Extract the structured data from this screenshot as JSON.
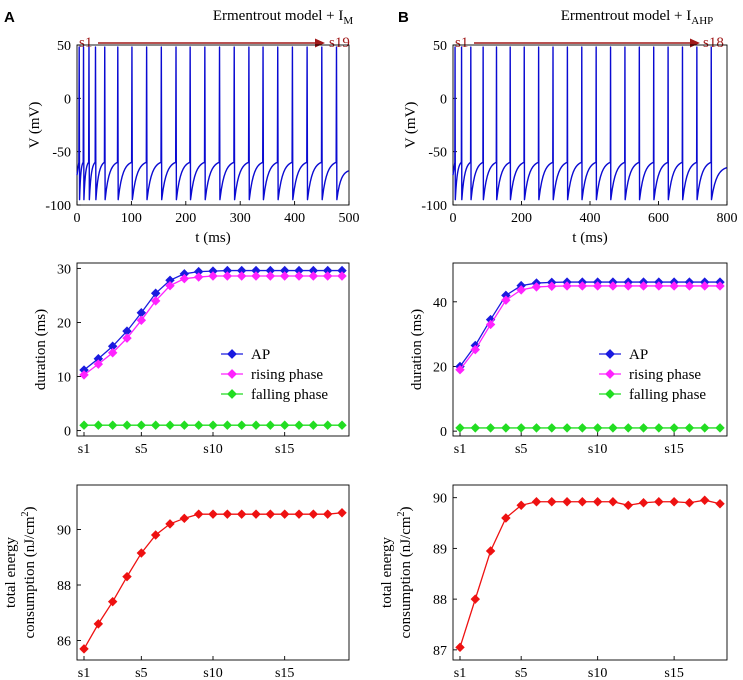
{
  "panels": [
    {
      "letter": "A",
      "title_main": "Ermentrout model + I",
      "title_sub": "M",
      "arrow_start": "s1",
      "arrow_end": "s19"
    },
    {
      "letter": "B",
      "title_main": "Ermentrout model + I",
      "title_sub": "AHP",
      "arrow_start": "s1",
      "arrow_end": "s18"
    }
  ],
  "colors": {
    "trace": "#0a0ad2",
    "ap": "#1a1adf",
    "rising": "#ff22ff",
    "falling": "#22dd22",
    "energy": "#ee1111",
    "arrow": "#a01818",
    "axis": "#000000"
  },
  "chart_data": [
    {
      "id": "A-voltage",
      "type": "line",
      "title": "Ermentrout model + IM",
      "xlabel": "t (ms)",
      "ylabel": "V (mV)",
      "xlim": [
        0,
        500
      ],
      "ylim": [
        -100,
        50
      ],
      "xticks": [
        0,
        100,
        200,
        300,
        400,
        500
      ],
      "yticks": [
        -100,
        -50,
        0,
        50
      ],
      "spike_times": [
        4,
        12,
        22,
        34,
        51,
        75,
        101,
        128,
        155,
        182,
        208,
        235,
        262,
        289,
        316,
        342,
        369,
        396,
        423,
        450,
        477
      ],
      "v_peak": 48,
      "v_reset": -95,
      "v_end": -68
    },
    {
      "id": "A-duration",
      "type": "line",
      "xlabel": "",
      "ylabel": "duration (ms)",
      "categories": [
        "s1",
        "s2",
        "s3",
        "s4",
        "s5",
        "s6",
        "s7",
        "s8",
        "s9",
        "s10",
        "s11",
        "s12",
        "s13",
        "s14",
        "s15",
        "s16",
        "s17",
        "s18",
        "s19"
      ],
      "xtick_labels": [
        "s1",
        "s5",
        "s10",
        "s15"
      ],
      "xtick_index": [
        1,
        5,
        10,
        15
      ],
      "ylim": [
        -1,
        31
      ],
      "yticks": [
        0,
        10,
        20,
        30
      ],
      "legend": "center-right",
      "series": [
        {
          "name": "AP",
          "values": [
            11.2,
            13.3,
            15.6,
            18.4,
            21.8,
            25.4,
            27.8,
            29.0,
            29.4,
            29.5,
            29.6,
            29.6,
            29.6,
            29.6,
            29.6,
            29.6,
            29.6,
            29.6,
            29.6
          ]
        },
        {
          "name": "rising phase",
          "values": [
            10.3,
            12.3,
            14.4,
            17.1,
            20.4,
            24.0,
            26.8,
            28.1,
            28.4,
            28.6,
            28.6,
            28.6,
            28.6,
            28.6,
            28.6,
            28.6,
            28.6,
            28.6,
            28.6
          ]
        },
        {
          "name": "falling phase",
          "values": [
            1.0,
            1.0,
            1.0,
            1.0,
            1.0,
            1.0,
            1.0,
            1.0,
            1.0,
            1.0,
            1.0,
            1.0,
            1.0,
            1.0,
            1.0,
            1.0,
            1.0,
            1.0,
            1.0
          ]
        }
      ]
    },
    {
      "id": "A-energy",
      "type": "line",
      "ylabel_line1": "total energy",
      "ylabel_line2": "consumption (nJ/cm",
      "ylabel_sup": "2",
      "ylabel_close": ")",
      "categories": [
        "s1",
        "s2",
        "s3",
        "s4",
        "s5",
        "s6",
        "s7",
        "s8",
        "s9",
        "s10",
        "s11",
        "s12",
        "s13",
        "s14",
        "s15",
        "s16",
        "s17",
        "s18",
        "s19"
      ],
      "xtick_labels": [
        "s1",
        "s5",
        "s10",
        "s15"
      ],
      "xtick_index": [
        1,
        5,
        10,
        15
      ],
      "ylim": [
        85.3,
        91.6
      ],
      "yticks": [
        86,
        88,
        90
      ],
      "series": [
        {
          "name": "energy",
          "values": [
            85.7,
            86.6,
            87.4,
            88.3,
            89.15,
            89.8,
            90.2,
            90.4,
            90.55,
            90.55,
            90.55,
            90.55,
            90.55,
            90.55,
            90.55,
            90.55,
            90.55,
            90.55,
            90.6
          ]
        }
      ]
    },
    {
      "id": "B-voltage",
      "type": "line",
      "title": "Ermentrout model + IAHP",
      "xlabel": "t (ms)",
      "ylabel": "V (mV)",
      "xlim": [
        0,
        800
      ],
      "ylim": [
        -100,
        50
      ],
      "xticks": [
        0,
        200,
        400,
        600,
        800
      ],
      "yticks": [
        -100,
        -50,
        0,
        50
      ],
      "spike_times": [
        6,
        25,
        52,
        88,
        127,
        167,
        208,
        250,
        292,
        334,
        376,
        418,
        460,
        502,
        544,
        586,
        628,
        670,
        712,
        754
      ],
      "v_peak": 48,
      "v_reset": -95,
      "v_end": -65
    },
    {
      "id": "B-duration",
      "type": "line",
      "xlabel": "",
      "ylabel": "duration (ms)",
      "categories": [
        "s1",
        "s2",
        "s3",
        "s4",
        "s5",
        "s6",
        "s7",
        "s8",
        "s9",
        "s10",
        "s11",
        "s12",
        "s13",
        "s14",
        "s15",
        "s16",
        "s17",
        "s18"
      ],
      "xtick_labels": [
        "s1",
        "s5",
        "s10",
        "s15"
      ],
      "xtick_index": [
        1,
        5,
        10,
        15
      ],
      "ylim": [
        -1.5,
        52
      ],
      "yticks": [
        0,
        20,
        40
      ],
      "legend": "center-right",
      "series": [
        {
          "name": "AP",
          "values": [
            20.0,
            26.5,
            34.5,
            42.0,
            45.0,
            45.8,
            46.0,
            46.1,
            46.1,
            46.1,
            46.1,
            46.1,
            46.1,
            46.1,
            46.1,
            46.1,
            46.1,
            46.1
          ]
        },
        {
          "name": "rising phase",
          "values": [
            19.0,
            25.2,
            33.0,
            40.5,
            43.7,
            44.6,
            44.8,
            44.9,
            44.9,
            44.9,
            44.9,
            44.9,
            44.9,
            44.9,
            44.9,
            44.9,
            44.9,
            44.9
          ]
        },
        {
          "name": "falling phase",
          "values": [
            1.0,
            1.0,
            1.0,
            1.0,
            1.0,
            1.0,
            1.0,
            1.0,
            1.0,
            1.0,
            1.0,
            1.0,
            1.0,
            1.0,
            1.0,
            1.0,
            1.0,
            1.0
          ]
        }
      ]
    },
    {
      "id": "B-energy",
      "type": "line",
      "ylabel_line1": "total energy",
      "ylabel_line2": "consumption (nJ/cm",
      "ylabel_sup": "2",
      "ylabel_close": ")",
      "categories": [
        "s1",
        "s2",
        "s3",
        "s4",
        "s5",
        "s6",
        "s7",
        "s8",
        "s9",
        "s10",
        "s11",
        "s12",
        "s13",
        "s14",
        "s15",
        "s16",
        "s17",
        "s18"
      ],
      "xtick_labels": [
        "s1",
        "s5",
        "s10",
        "s15"
      ],
      "xtick_index": [
        1,
        5,
        10,
        15
      ],
      "ylim": [
        86.8,
        90.25
      ],
      "yticks": [
        87,
        88,
        89,
        90
      ],
      "series": [
        {
          "name": "energy",
          "values": [
            87.05,
            88.0,
            88.95,
            89.6,
            89.85,
            89.92,
            89.92,
            89.92,
            89.92,
            89.92,
            89.92,
            89.85,
            89.9,
            89.92,
            89.92,
            89.9,
            89.95,
            89.88
          ]
        }
      ]
    }
  ]
}
